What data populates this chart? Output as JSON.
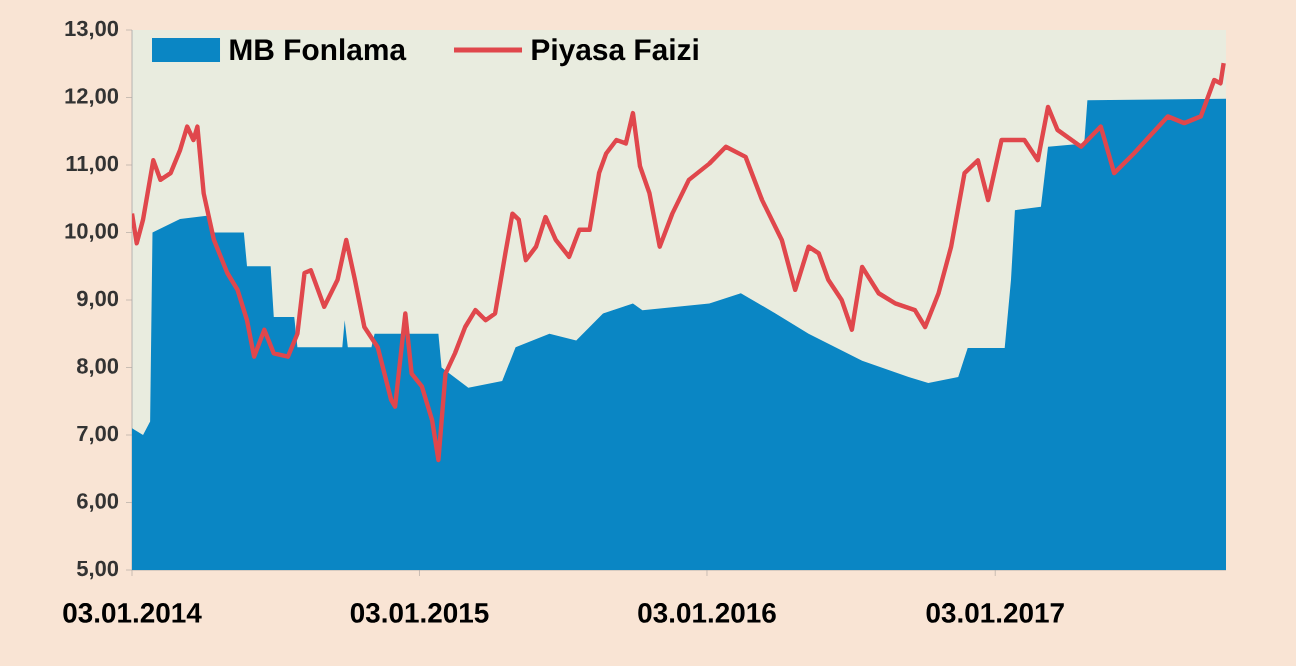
{
  "chart_data": {
    "type": "area",
    "series": [
      {
        "name": "MB Fonlama",
        "color": "#0a86c4",
        "x": [
          "2014-01-03",
          "2014-01-17",
          "2014-01-26",
          "2014-01-29",
          "2014-03-05",
          "2014-04-08",
          "2014-04-15",
          "2014-05-25",
          "2014-05-29",
          "2014-06-28",
          "2014-07-02",
          "2014-07-28",
          "2014-08-01",
          "2014-09-27",
          "2014-09-30",
          "2014-10-04",
          "2014-11-03",
          "2014-11-07",
          "2015-01-27",
          "2015-01-31",
          "2015-03-06",
          "2015-04-18",
          "2015-05-05",
          "2015-06-17",
          "2015-07-21",
          "2015-08-24",
          "2015-10-01",
          "2015-10-13",
          "2016-01-06",
          "2016-02-15",
          "2016-03-30",
          "2016-05-11",
          "2016-07-18",
          "2016-09-15",
          "2016-10-10",
          "2016-11-17",
          "2016-11-29",
          "2017-01-15",
          "2017-01-23",
          "2017-01-28",
          "2017-03-02",
          "2017-03-11",
          "2017-04-26",
          "2017-04-30",
          "2017-10-23"
        ],
        "values": [
          7.1,
          7.0,
          7.2,
          10.0,
          10.2,
          10.25,
          10.0,
          10.0,
          9.5,
          9.5,
          8.75,
          8.75,
          8.3,
          8.3,
          8.7,
          8.3,
          8.3,
          8.5,
          8.5,
          8.0,
          7.7,
          7.8,
          8.3,
          8.5,
          8.4,
          8.8,
          8.95,
          8.85,
          8.95,
          9.1,
          8.8,
          8.5,
          8.1,
          7.86,
          7.77,
          7.86,
          8.29,
          8.29,
          9.3,
          10.33,
          10.38,
          11.27,
          11.32,
          11.96,
          11.98
        ]
      },
      {
        "name": "Piyasa Faizi",
        "type": "line",
        "color": "#e0474c",
        "x": [
          "2014-01-03",
          "2014-01-09",
          "2014-01-17",
          "2014-01-30",
          "2014-02-08",
          "2014-02-21",
          "2014-03-05",
          "2014-03-14",
          "2014-03-22",
          "2014-03-27",
          "2014-04-04",
          "2014-04-17",
          "2014-05-04",
          "2014-05-17",
          "2014-05-29",
          "2014-06-07",
          "2014-06-20",
          "2014-07-02",
          "2014-07-20",
          "2014-08-01",
          "2014-08-10",
          "2014-08-18",
          "2014-09-04",
          "2014-09-21",
          "2014-10-02",
          "2014-10-13",
          "2014-10-25",
          "2014-11-11",
          "2014-11-28",
          "2014-12-03",
          "2014-12-16",
          "2014-12-24",
          "2015-01-06",
          "2015-01-19",
          "2015-01-27",
          "2015-02-05",
          "2015-02-17",
          "2015-03-02",
          "2015-03-15",
          "2015-03-28",
          "2015-04-09",
          "2015-04-22",
          "2015-05-01",
          "2015-05-09",
          "2015-05-18",
          "2015-05-31",
          "2015-06-12",
          "2015-06-25",
          "2015-07-12",
          "2015-07-25",
          "2015-08-07",
          "2015-08-19",
          "2015-08-28",
          "2015-09-10",
          "2015-09-22",
          "2015-10-01",
          "2015-10-10",
          "2015-10-22",
          "2015-11-04",
          "2015-11-20",
          "2015-12-11",
          "2016-01-06",
          "2016-01-27",
          "2016-02-21",
          "2016-03-13",
          "2016-04-07",
          "2016-04-24",
          "2016-05-11",
          "2016-05-24",
          "2016-06-05",
          "2016-06-22",
          "2016-07-05",
          "2016-07-18",
          "2016-08-08",
          "2016-08-29",
          "2016-09-23",
          "2016-10-06",
          "2016-10-23",
          "2016-11-08",
          "2016-11-25",
          "2016-12-12",
          "2016-12-25",
          "2017-01-11",
          "2017-02-09",
          "2017-02-26",
          "2017-03-11",
          "2017-03-23",
          "2017-04-22",
          "2017-05-17",
          "2017-06-03",
          "2017-06-28",
          "2017-08-10",
          "2017-08-31",
          "2017-09-21",
          "2017-10-08",
          "2017-10-16",
          "2017-10-20"
        ],
        "values": [
          10.28,
          9.84,
          10.19,
          11.07,
          10.78,
          10.88,
          11.22,
          11.57,
          11.37,
          11.57,
          10.58,
          9.89,
          9.4,
          9.15,
          8.7,
          8.16,
          8.56,
          8.21,
          8.16,
          8.5,
          9.4,
          9.44,
          8.9,
          9.3,
          9.89,
          9.3,
          8.6,
          8.3,
          7.52,
          7.42,
          8.8,
          7.91,
          7.72,
          7.22,
          6.63,
          7.91,
          8.21,
          8.6,
          8.85,
          8.7,
          8.8,
          9.69,
          10.28,
          10.19,
          9.59,
          9.79,
          10.23,
          9.89,
          9.64,
          10.04,
          10.04,
          10.88,
          11.17,
          11.37,
          11.32,
          11.77,
          10.98,
          10.58,
          9.79,
          10.28,
          10.78,
          11.02,
          11.27,
          11.12,
          10.48,
          9.89,
          9.15,
          9.79,
          9.69,
          9.3,
          9.0,
          8.56,
          9.49,
          9.1,
          8.95,
          8.85,
          8.6,
          9.1,
          9.79,
          10.88,
          11.07,
          10.48,
          11.37,
          11.37,
          11.07,
          11.86,
          11.52,
          11.27,
          11.57,
          10.88,
          11.17,
          11.72,
          11.62,
          11.72,
          12.26,
          12.21,
          12.51
        ]
      }
    ],
    "xlim": [
      "2014-01-03",
      "2017-10-23"
    ],
    "xticks": [
      {
        "value": "2014-01-03",
        "label": "03.01.2014"
      },
      {
        "value": "2015-01-03",
        "label": "03.01.2015"
      },
      {
        "value": "2016-01-03",
        "label": "03.01.2016"
      },
      {
        "value": "2017-01-03",
        "label": "03.01.2017"
      }
    ],
    "ylim": [
      5,
      13
    ],
    "yticks": [
      {
        "value": 5,
        "label": "5,00"
      },
      {
        "value": 6,
        "label": "6,00"
      },
      {
        "value": 7,
        "label": "7,00"
      },
      {
        "value": 8,
        "label": "8,00"
      },
      {
        "value": 9,
        "label": "9,00"
      },
      {
        "value": 10,
        "label": "10,00"
      },
      {
        "value": 11,
        "label": "11,00"
      },
      {
        "value": 12,
        "label": "12,00"
      },
      {
        "value": 13,
        "label": "13,00"
      }
    ],
    "legend": "top left",
    "grid": false
  }
}
